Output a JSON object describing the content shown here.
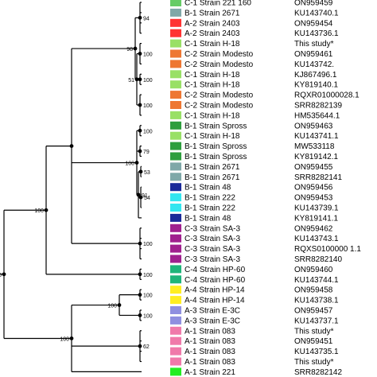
{
  "tree": {
    "leaves": [
      {
        "label": "C-1 Strain 221 160",
        "accession": "ON959459",
        "color": "#66cc66"
      },
      {
        "label": "B-1 Strain 2671",
        "accession": "KU143740.1",
        "color": "#7fa8a8"
      },
      {
        "label": "A-2 Strain 2403",
        "accession": "ON959454",
        "color": "#ff3333"
      },
      {
        "label": "A-2 Strain 2403",
        "accession": "KU143736.1",
        "color": "#ff3333"
      },
      {
        "label": "C-1 Strain H-18",
        "accession": "This study*",
        "color": "#99e066"
      },
      {
        "label": "C-2 Strain Modesto",
        "accession": "ON959461",
        "color": "#ee7733"
      },
      {
        "label": "C-2 Strain Modesto",
        "accession": "KU143742.",
        "color": "#ee7733"
      },
      {
        "label": "C-1 Strain H-18",
        "accession": "KJ867496.1",
        "color": "#99e066"
      },
      {
        "label": "C-1 Strain H-18",
        "accession": "KY819140.1",
        "color": "#99e066"
      },
      {
        "label": "C-2 Strain Modesto",
        "accession": "RQXR01000028.1",
        "color": "#ee7733"
      },
      {
        "label": "C-2 Strain Modesto",
        "accession": "SRR8282139",
        "color": "#ee7733"
      },
      {
        "label": "C-1 Strain H-18",
        "accession": "HM535644.1",
        "color": "#99e066"
      },
      {
        "label": "B-1 Strain Spross",
        "accession": "ON959463",
        "color": "#2e9e3e"
      },
      {
        "label": "C-1 Strain H-18",
        "accession": "KU143741.1",
        "color": "#99e066"
      },
      {
        "label": "B-1 Strain Spross",
        "accession": "MW533118",
        "color": "#2e9e3e"
      },
      {
        "label": "B-1 Strain Spross",
        "accession": "KY819142.1",
        "color": "#2e9e3e"
      },
      {
        "label": "B-1 Strain 2671",
        "accession": "ON959455",
        "color": "#7fa8a8"
      },
      {
        "label": "B-1 Strain 2671",
        "accession": "SRR8282141",
        "color": "#7fa8a8"
      },
      {
        "label": "B-1 Strain 48",
        "accession": "ON959456",
        "color": "#1a2a99"
      },
      {
        "label": "B-1 Strain 222",
        "accession": "ON959453",
        "color": "#33e6f0"
      },
      {
        "label": "B-1 Strain 222",
        "accession": "KU143739.1",
        "color": "#33e6f0"
      },
      {
        "label": "B-1 Strain 48",
        "accession": "KY819141.1",
        "color": "#1a2a99"
      },
      {
        "label": "C-3 Strain SA-3",
        "accession": "ON959462",
        "color": "#a0208e"
      },
      {
        "label": "C-3 Strain SA-3",
        "accession": "KU143743.1",
        "color": "#a0208e"
      },
      {
        "label": "C-3 Strain SA-3",
        "accession": "RQXS0100000 1.1",
        "color": "#a0208e"
      },
      {
        "label": "C-3 Strain SA-3",
        "accession": "SRR8282140",
        "color": "#a0208e"
      },
      {
        "label": "C-4 Strain HP-60",
        "accession": "ON959460",
        "color": "#1fb57a"
      },
      {
        "label": "C-4 Strain HP-60",
        "accession": "KU143744.1",
        "color": "#1fb57a"
      },
      {
        "label": "A-4 Strain HP-14",
        "accession": "ON959458",
        "color": "#ffee22"
      },
      {
        "label": "A-4 Strain HP-14",
        "accession": "KU143738.1",
        "color": "#ffee22"
      },
      {
        "label": "A-3 Strain E-3C",
        "accession": "ON959457",
        "color": "#8f8fe0"
      },
      {
        "label": "A-3 Strain E-3C",
        "accession": "KU143737.1",
        "color": "#8f8fe0"
      },
      {
        "label": "A-1 Strain 083",
        "accession": "This study*",
        "color": "#f07aaa"
      },
      {
        "label": "A-1 Strain 083",
        "accession": "ON959451",
        "color": "#f07aaa"
      },
      {
        "label": "A-1 Strain 083",
        "accession": "KU143735.1",
        "color": "#f07aaa"
      },
      {
        "label": "A-1 Strain 083",
        "accession": "This study*",
        "color": "#f07aaa"
      },
      {
        "label": "A-1 Strain 221",
        "accession": "SRR8282142",
        "color": "#22ee22"
      }
    ],
    "bootstrap": [
      {
        "node": "n94",
        "value": "94"
      },
      {
        "node": "n100a",
        "value": "100"
      },
      {
        "node": "n51",
        "value": "51"
      },
      {
        "node": "n100b",
        "value": "100"
      },
      {
        "node": "n100c",
        "value": "100"
      },
      {
        "node": "n98",
        "value": "98"
      },
      {
        "node": "n100d",
        "value": "100"
      },
      {
        "node": "n100e",
        "value": "100"
      },
      {
        "node": "n100f",
        "value": "100"
      },
      {
        "node": "n100g",
        "value": "100"
      },
      {
        "node": "n79",
        "value": "79"
      },
      {
        "node": "n75",
        "value": "75"
      },
      {
        "node": "n53",
        "value": "53"
      },
      {
        "node": "n52",
        "value": "52"
      },
      {
        "node": "n100h",
        "value": "100"
      },
      {
        "node": "n54",
        "value": "54"
      },
      {
        "node": "n98b",
        "value": "98"
      },
      {
        "node": "n91",
        "value": "91"
      },
      {
        "node": "n100i",
        "value": "100"
      },
      {
        "node": "n100j",
        "value": "100"
      },
      {
        "node": "n100k",
        "value": "100"
      },
      {
        "node": "n100l",
        "value": "100"
      },
      {
        "node": "n100m",
        "value": "100"
      },
      {
        "node": "n100n",
        "value": "100"
      },
      {
        "node": "n100o",
        "value": "100"
      },
      {
        "node": "n62a",
        "value": "62"
      },
      {
        "node": "n62b",
        "value": "62"
      },
      {
        "node": "n62c",
        "value": "62"
      },
      {
        "node": "n100p",
        "value": "100"
      }
    ]
  }
}
